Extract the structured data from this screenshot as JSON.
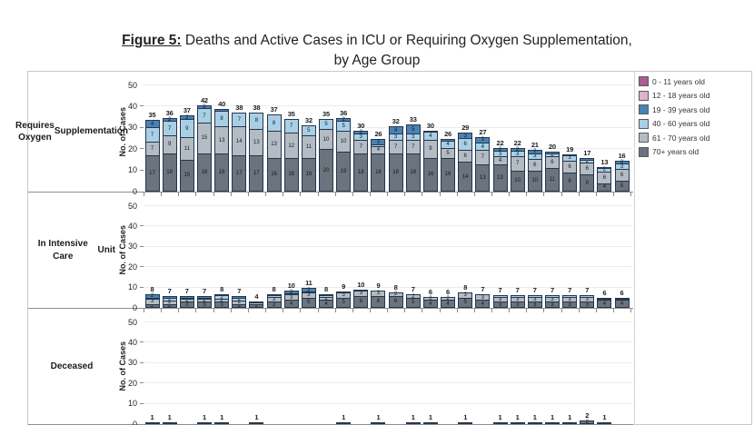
{
  "title": {
    "prefix": "Figure 5:",
    "rest": " Deaths and Active Cases in ICU or Requiring Oxygen Supplementation,",
    "line2": "by Age Group"
  },
  "y_axis": {
    "label": "No. of Cases",
    "ticks": [
      0,
      10,
      20,
      30,
      40,
      50
    ],
    "ylim": [
      0,
      50
    ]
  },
  "legend": [
    {
      "label": "0 - 11 years old",
      "color": "#ac5c8e"
    },
    {
      "label": "12 - 18 years old",
      "color": "#e0b3cc"
    },
    {
      "label": "19 - 39 years old",
      "color": "#4a82b4"
    },
    {
      "label": "40 - 60 years old",
      "color": "#a9cfe5"
    },
    {
      "label": "61 - 70 years old",
      "color": "#b4bcc3"
    },
    {
      "label": "70+ years old",
      "color": "#6b737d"
    }
  ],
  "chart_data": {
    "type": "bar",
    "stacked": true,
    "grid": true,
    "legend_position": "right",
    "ylim": [
      0,
      50
    ],
    "panels": [
      {
        "name": "requires-oxygen-supplementation",
        "label_lines": [
          "Requires Oxygen",
          "Supplementation"
        ],
        "totals": [
          35,
          36,
          37,
          42,
          40,
          38,
          38,
          37,
          35,
          32,
          35,
          36,
          30,
          26,
          32,
          33,
          30,
          26,
          29,
          27,
          22,
          22,
          21,
          20,
          19,
          17,
          13,
          16
        ],
        "series": [
          {
            "name": "70+ years old",
            "color": "#6b737d",
            "values": [
              17,
              18,
              15,
              18,
              18,
              17,
              17,
              16,
              16,
              16,
              20,
              19,
              18,
              18,
              18,
              18,
              16,
              16,
              14,
              13,
              13,
              10,
              10,
              11,
              9,
              8,
              4,
              5
            ]
          },
          {
            "name": "61 - 70 years old",
            "color": "#b4bcc3",
            "values": [
              7,
              9,
              11,
              15,
              13,
              14,
              13,
              13,
              12,
              11,
              10,
              10,
              7,
              4,
              7,
              7,
              9,
              5,
              6,
              7,
              4,
              7,
              6,
              6,
              6,
              6,
              6,
              6
            ]
          },
          {
            "name": "40 - 60 years old",
            "color": "#a9cfe5",
            "values": [
              7,
              7,
              9,
              7,
              8,
              7,
              8,
              8,
              7,
              5,
              5,
              5,
              3,
              1,
              3,
              3,
              4,
              4,
              6,
              4,
              3,
              3,
              3,
              2,
              3,
              2,
              2,
              3
            ]
          },
          {
            "name": "19 - 39 years old",
            "color": "#4a82b4",
            "values": [
              4,
              2,
              2,
              2,
              1,
              0,
              0,
              0,
              0,
              0,
              0,
              2,
              2,
              3,
              4,
              5,
              1,
              1,
              3,
              3,
              2,
              2,
              2,
              1,
              1,
              1,
              1,
              2
            ]
          }
        ]
      },
      {
        "name": "in-intensive-care-unit",
        "label_lines": [
          "In Intensive Care",
          "Unit"
        ],
        "totals": [
          8,
          7,
          7,
          7,
          8,
          7,
          4,
          8,
          10,
          11,
          8,
          9,
          10,
          9,
          8,
          7,
          6,
          6,
          8,
          7,
          7,
          7,
          7,
          7,
          7,
          7,
          6,
          6
        ],
        "series": [
          {
            "name": "70+ years old",
            "color": "#6b737d",
            "values": [
              2,
              2,
              3,
              3,
              3,
              2,
              2,
              3,
              4,
              5,
              4,
              5,
              6,
              6,
              6,
              5,
              4,
              4,
              5,
              4,
              3,
              3,
              3,
              3,
              3,
              3,
              4,
              4
            ]
          },
          {
            "name": "61 - 70 years old",
            "color": "#b4bcc3",
            "values": [
              3,
              2,
              2,
              2,
              2,
              2,
              1,
              3,
              3,
              3,
              2,
              3,
              3,
              3,
              2,
              2,
              2,
              2,
              3,
              3,
              3,
              3,
              3,
              3,
              3,
              3,
              1,
              1
            ]
          },
          {
            "name": "40 - 60 years old",
            "color": "#a9cfe5",
            "values": [
              1,
              2,
              1,
              1,
              2,
              2,
              1,
              1,
              1,
              1,
              1,
              1,
              1,
              0,
              0,
              0,
              0,
              0,
              0,
              0,
              1,
              1,
              1,
              1,
              1,
              1,
              1,
              1
            ]
          },
          {
            "name": "19 - 39 years old",
            "color": "#4a82b4",
            "values": [
              2,
              1,
              1,
              1,
              1,
              1,
              0,
              1,
              2,
              2,
              1,
              0,
              0,
              0,
              0,
              0,
              0,
              0,
              0,
              0,
              0,
              0,
              0,
              0,
              0,
              0,
              0,
              0
            ]
          }
        ]
      },
      {
        "name": "deceased",
        "label_lines": [
          "Deceased"
        ],
        "totals": [
          1,
          1,
          0,
          1,
          1,
          0,
          1,
          0,
          0,
          0,
          0,
          1,
          0,
          1,
          0,
          1,
          1,
          0,
          1,
          0,
          1,
          1,
          1,
          1,
          1,
          2,
          1,
          0
        ],
        "series": [
          {
            "name": "70+ years old",
            "color": "#6b737d",
            "values": [
              0,
              0,
              0,
              1,
              0,
              0,
              1,
              0,
              0,
              0,
              0,
              0,
              0,
              1,
              0,
              0,
              1,
              0,
              1,
              0,
              1,
              1,
              1,
              1,
              1,
              2,
              0,
              0
            ]
          },
          {
            "name": "61 - 70 years old",
            "color": "#b4bcc3",
            "values": [
              0,
              0,
              0,
              0,
              1,
              0,
              0,
              0,
              0,
              0,
              0,
              1,
              0,
              0,
              0,
              1,
              0,
              0,
              0,
              0,
              0,
              0,
              0,
              0,
              0,
              0,
              1,
              0
            ]
          },
          {
            "name": "40 - 60 years old",
            "color": "#a9cfe5",
            "values": [
              0,
              1,
              0,
              0,
              0,
              0,
              0,
              0,
              0,
              0,
              0,
              0,
              0,
              0,
              0,
              0,
              0,
              0,
              0,
              0,
              0,
              0,
              0,
              0,
              0,
              0,
              0,
              0
            ]
          },
          {
            "name": "19 - 39 years old",
            "color": "#4a82b4",
            "values": [
              1,
              0,
              0,
              0,
              0,
              0,
              0,
              0,
              0,
              0,
              0,
              0,
              0,
              0,
              0,
              0,
              0,
              0,
              0,
              0,
              0,
              0,
              0,
              0,
              0,
              0,
              0,
              0
            ]
          }
        ]
      }
    ]
  }
}
